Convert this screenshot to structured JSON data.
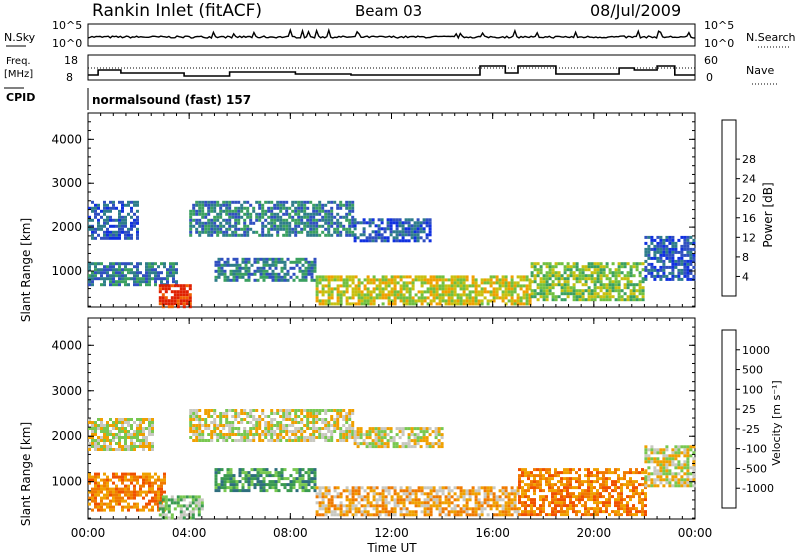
{
  "header": {
    "station": "Rankin Inlet (fitACF)",
    "beam": "Beam 03",
    "date": "08/Jul/2009"
  },
  "panels": {
    "nsky_label": "N.Sky",
    "nsky_top": "10^5",
    "nsky_bottom": "10^0",
    "nsearch_label": "N.Search",
    "nsearch_top": "10^5",
    "nsearch_bottom": "10^0",
    "freq_label": "Freq.",
    "freq_unit": "[MHz]",
    "freq_top": "18",
    "freq_bottom": "8",
    "nave_label": "Nave",
    "nave_top": "60",
    "nave_bottom": "0",
    "cpid_label": "CPID",
    "cpid_text": "normalsound (fast) 157"
  },
  "colors": {
    "power": [
      "#1030e0",
      "#3050c0",
      "#2e7d8a",
      "#3aa060",
      "#70c040",
      "#c8c010",
      "#f0a000",
      "#f06000",
      "#e02000"
    ],
    "velocity": [
      "#2040c0",
      "#2e6e7e",
      "#3a9a50",
      "#78c850",
      "#c8c8c0",
      "#f0a000",
      "#f07a00",
      "#f05000",
      "#e01818"
    ]
  },
  "chart_data": [
    {
      "type": "heatmap",
      "name": "power",
      "ylabel": "Slant Range [km]",
      "xlabel": "",
      "yticks": [
        1000,
        2000,
        3000,
        4000
      ],
      "ylim": [
        180,
        4600
      ],
      "xticks": [
        "00:00",
        "04:00",
        "08:00",
        "12:00",
        "16:00",
        "20:00",
        "00:00"
      ],
      "xlim_hours": [
        0,
        24
      ],
      "colorbar_label": "Power [dB]",
      "colorbar_ticks": [
        "4",
        "8",
        "12",
        "16",
        "20",
        "24",
        "28"
      ],
      "bands": [
        {
          "x0": 0.0,
          "x1": 2.0,
          "y0": 1750,
          "y1": 2600,
          "level": 1
        },
        {
          "x0": 4.0,
          "x1": 10.5,
          "y0": 1800,
          "y1": 2600,
          "level": 2
        },
        {
          "x0": 10.5,
          "x1": 13.5,
          "y0": 1700,
          "y1": 2200,
          "level": 1
        },
        {
          "x0": 0.0,
          "x1": 3.5,
          "y0": 700,
          "y1": 1200,
          "level": 2
        },
        {
          "x0": 5.0,
          "x1": 9.0,
          "y0": 800,
          "y1": 1300,
          "level": 2
        },
        {
          "x0": 2.8,
          "x1": 4.0,
          "y0": 180,
          "y1": 700,
          "level": 8
        },
        {
          "x0": 9.0,
          "x1": 17.5,
          "y0": 250,
          "y1": 900,
          "level": 5
        },
        {
          "x0": 17.5,
          "x1": 22.0,
          "y0": 350,
          "y1": 1200,
          "level": 4
        },
        {
          "x0": 22.0,
          "x1": 24.0,
          "y0": 800,
          "y1": 1800,
          "level": 1
        }
      ]
    },
    {
      "type": "heatmap",
      "name": "velocity",
      "ylabel": "Slant Range [km]",
      "xlabel": "Time UT",
      "yticks": [
        1000,
        2000,
        3000,
        4000
      ],
      "ylim": [
        180,
        4600
      ],
      "xticks": [
        "00:00",
        "04:00",
        "08:00",
        "12:00",
        "16:00",
        "20:00",
        "00:00"
      ],
      "xlim_hours": [
        0,
        24
      ],
      "colorbar_label": "Velocity [m s⁻¹]",
      "colorbar_ticks": [
        "1000",
        "500",
        "100",
        "25",
        "-25",
        "-100",
        "-500",
        "-1000"
      ],
      "bands": [
        {
          "x0": 0.0,
          "x1": 2.5,
          "y0": 1700,
          "y1": 2400,
          "level": 4
        },
        {
          "x0": 4.0,
          "x1": 10.5,
          "y0": 1900,
          "y1": 2600,
          "level": 4
        },
        {
          "x0": 10.5,
          "x1": 14.0,
          "y0": 1800,
          "y1": 2200,
          "level": 4
        },
        {
          "x0": 0.0,
          "x1": 3.0,
          "y0": 400,
          "y1": 1200,
          "level": 6
        },
        {
          "x0": 5.0,
          "x1": 9.0,
          "y0": 800,
          "y1": 1300,
          "level": 2
        },
        {
          "x0": 2.8,
          "x1": 4.5,
          "y0": 180,
          "y1": 700,
          "level": 3
        },
        {
          "x0": 9.0,
          "x1": 17.0,
          "y0": 250,
          "y1": 900,
          "level": 5
        },
        {
          "x0": 17.0,
          "x1": 22.0,
          "y0": 300,
          "y1": 1300,
          "level": 6
        },
        {
          "x0": 22.0,
          "x1": 24.0,
          "y0": 900,
          "y1": 1800,
          "level": 4
        }
      ]
    }
  ]
}
